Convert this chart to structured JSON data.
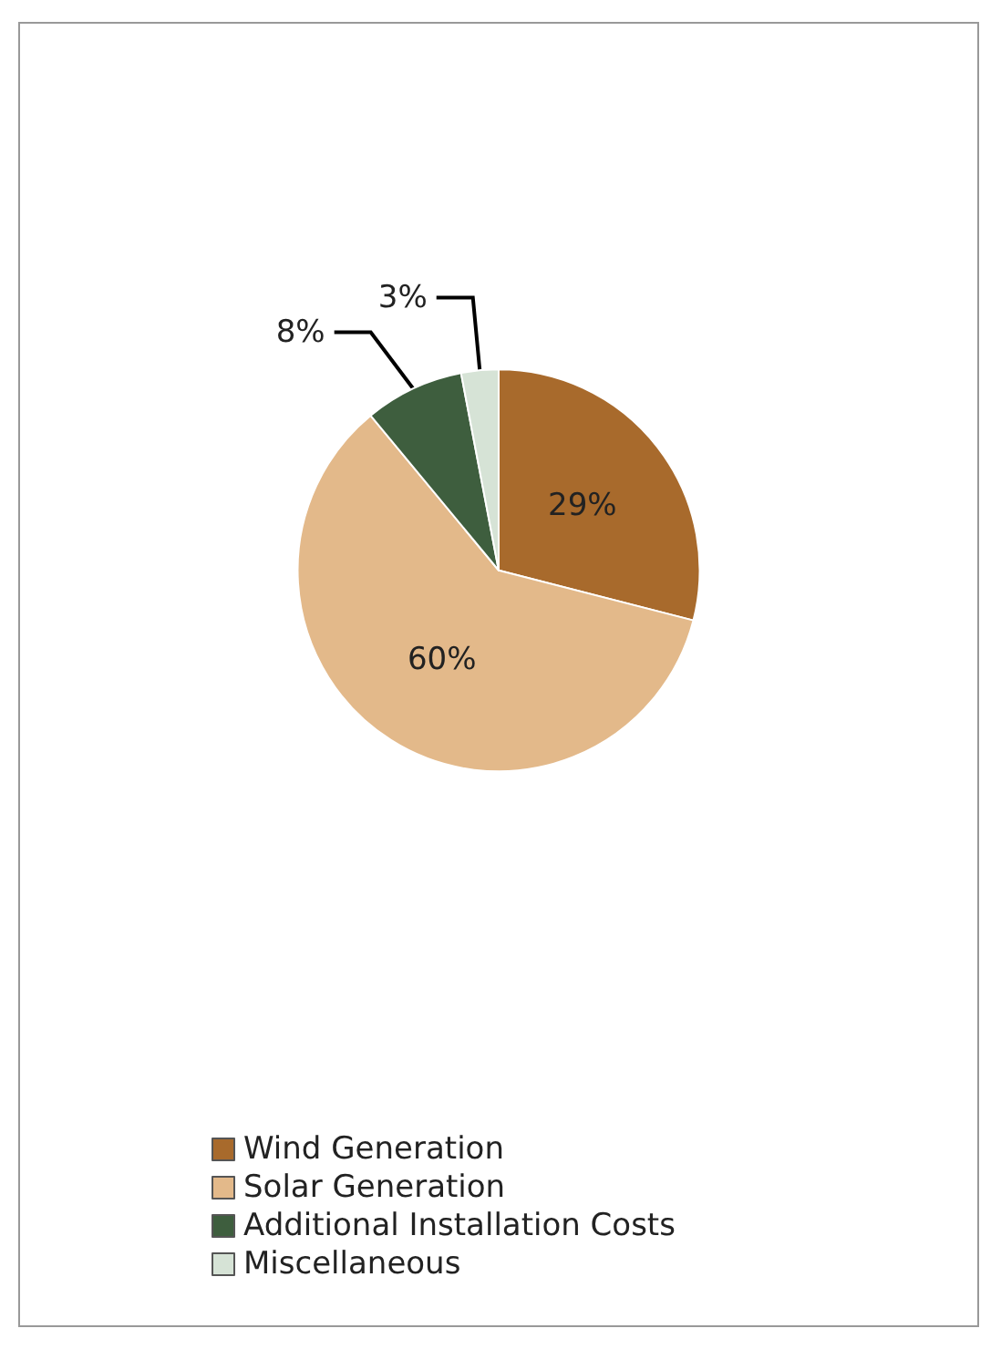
{
  "chart_data": {
    "type": "pie",
    "categories": [
      "Wind Generation",
      "Solar Generation",
      "Additional Installation Costs",
      "Miscellaneous"
    ],
    "values": [
      29,
      60,
      8,
      3
    ],
    "colors": [
      "#a86a2c",
      "#e3b98a",
      "#3e5e3e",
      "#d6e3d6"
    ],
    "value_labels": [
      "29%",
      "60%",
      "8%",
      "3%"
    ],
    "legend": "bottom"
  }
}
